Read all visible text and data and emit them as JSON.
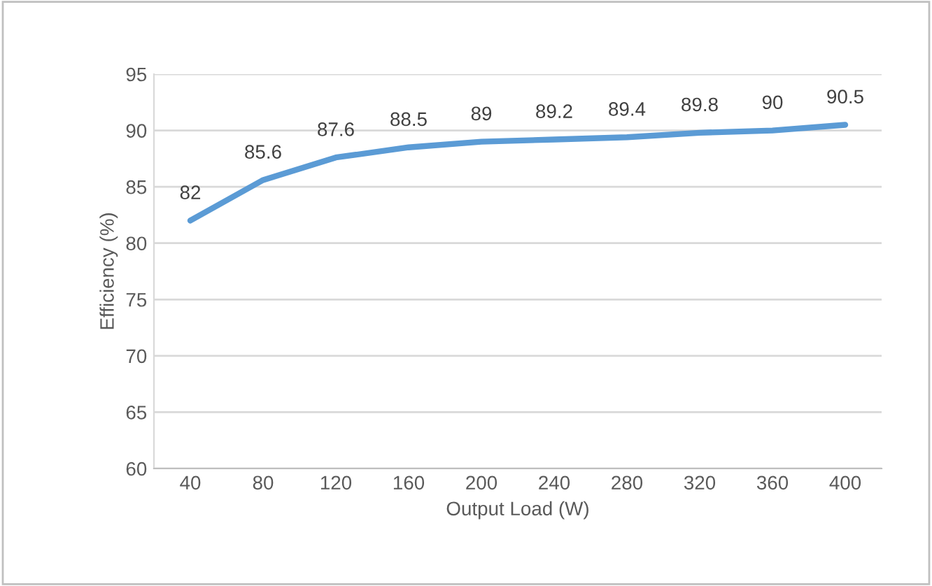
{
  "chart_data": {
    "type": "line",
    "xlabel": "Output Load (W)",
    "ylabel": "Efficiency (%)",
    "categories": [
      "40",
      "80",
      "120",
      "160",
      "200",
      "240",
      "280",
      "320",
      "360",
      "400"
    ],
    "series": [
      {
        "color": "#5b9bd5",
        "values": [
          82,
          85.6,
          87.6,
          88.5,
          89,
          89.2,
          89.4,
          89.8,
          90,
          90.5
        ]
      }
    ],
    "ylim": [
      60,
      95
    ],
    "yticks": [
      60,
      65,
      70,
      75,
      80,
      85,
      90,
      95
    ],
    "grid": "y",
    "data_labels": true,
    "marker": "none",
    "line_style": "solid"
  }
}
